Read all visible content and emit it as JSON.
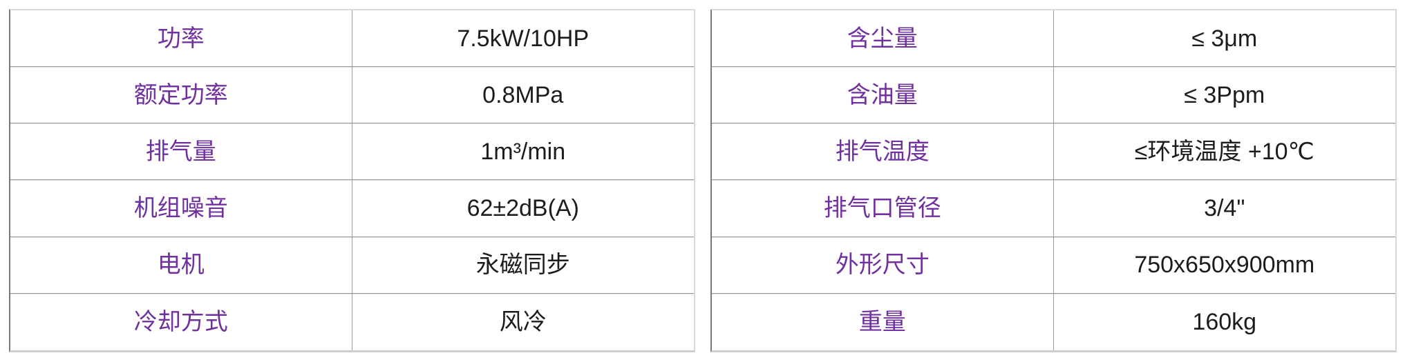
{
  "page": {
    "background_color": "#ffffff",
    "label_color": "#7030a0",
    "value_color": "#1c1c1c",
    "grid_line_color": "#999999",
    "outer_border_color": "#d9d9d9"
  },
  "tables": [
    {
      "name": "spec-table-left",
      "rows": [
        {
          "label": "功率",
          "value": "7.5kW/10HP"
        },
        {
          "label": "额定功率",
          "value": "0.8MPa"
        },
        {
          "label": "排气量",
          "value": "1m³/min"
        },
        {
          "label": "机组噪音",
          "value": "62±2dB(A)"
        },
        {
          "label": "电机",
          "value": "永磁同步"
        },
        {
          "label": "冷却方式",
          "value": "风冷"
        }
      ]
    },
    {
      "name": "spec-table-right",
      "rows": [
        {
          "label": "含尘量",
          "value": "≤ 3μm"
        },
        {
          "label": "含油量",
          "value": "≤ 3Ppm"
        },
        {
          "label": "排气温度",
          "value": "≤环境温度 +10℃"
        },
        {
          "label": "排气口管径",
          "value": "3/4\""
        },
        {
          "label": "外形尺寸",
          "value": "750x650x900mm"
        },
        {
          "label": "重量",
          "value": "160kg"
        }
      ]
    }
  ]
}
